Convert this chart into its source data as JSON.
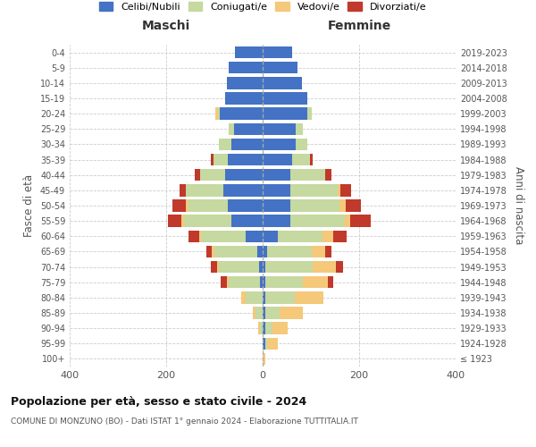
{
  "age_groups": [
    "100+",
    "95-99",
    "90-94",
    "85-89",
    "80-84",
    "75-79",
    "70-74",
    "65-69",
    "60-64",
    "55-59",
    "50-54",
    "45-49",
    "40-44",
    "35-39",
    "30-34",
    "25-29",
    "20-24",
    "15-19",
    "10-14",
    "5-9",
    "0-4"
  ],
  "birth_years": [
    "≤ 1923",
    "1924-1928",
    "1929-1933",
    "1934-1938",
    "1939-1943",
    "1944-1948",
    "1949-1953",
    "1954-1958",
    "1959-1963",
    "1964-1968",
    "1969-1973",
    "1974-1978",
    "1979-1983",
    "1984-1988",
    "1989-1993",
    "1994-1998",
    "1999-2003",
    "2004-2008",
    "2009-2013",
    "2014-2018",
    "2019-2023"
  ],
  "colors": {
    "celibi": "#4472c4",
    "coniugati": "#c5d9a0",
    "vedovi": "#f5c87a",
    "divorziati": "#c0392b"
  },
  "males": {
    "celibi": [
      0,
      0,
      0,
      0,
      0,
      5,
      8,
      12,
      35,
      65,
      72,
      82,
      78,
      72,
      65,
      60,
      88,
      78,
      75,
      70,
      58
    ],
    "coniugati": [
      0,
      0,
      5,
      15,
      35,
      65,
      82,
      88,
      92,
      98,
      82,
      78,
      52,
      30,
      25,
      10,
      5,
      0,
      0,
      0,
      0
    ],
    "vedovi": [
      0,
      0,
      5,
      5,
      10,
      5,
      5,
      5,
      5,
      5,
      5,
      0,
      0,
      0,
      0,
      0,
      5,
      0,
      0,
      0,
      0
    ],
    "divorziati": [
      0,
      0,
      0,
      0,
      0,
      12,
      12,
      12,
      22,
      28,
      28,
      12,
      10,
      5,
      0,
      0,
      0,
      0,
      0,
      0,
      0
    ]
  },
  "females": {
    "celibi": [
      0,
      5,
      5,
      5,
      5,
      5,
      5,
      10,
      32,
      58,
      58,
      58,
      58,
      62,
      68,
      68,
      92,
      92,
      82,
      72,
      62
    ],
    "coniugati": [
      0,
      5,
      15,
      30,
      62,
      78,
      98,
      92,
      92,
      112,
      102,
      98,
      72,
      36,
      25,
      15,
      10,
      0,
      0,
      0,
      0
    ],
    "vedovi": [
      5,
      22,
      32,
      48,
      58,
      52,
      48,
      28,
      22,
      12,
      12,
      5,
      0,
      0,
      0,
      0,
      0,
      0,
      0,
      0,
      0
    ],
    "divorziati": [
      0,
      0,
      0,
      0,
      0,
      12,
      16,
      12,
      28,
      42,
      32,
      22,
      12,
      5,
      0,
      0,
      0,
      0,
      0,
      0,
      0
    ]
  },
  "title": "Popolazione per età, sesso e stato civile - 2024",
  "subtitle": "COMUNE DI MONZUNO (BO) - Dati ISTAT 1° gennaio 2024 - Elaborazione TUTTITALIA.IT",
  "xlabel_left": "Maschi",
  "xlabel_right": "Femmine",
  "ylabel_left": "Fasce di età",
  "ylabel_right": "Anni di nascita",
  "xlim": 400,
  "legend_labels": [
    "Celibi/Nubili",
    "Coniugati/e",
    "Vedovi/e",
    "Divorziati/e"
  ]
}
